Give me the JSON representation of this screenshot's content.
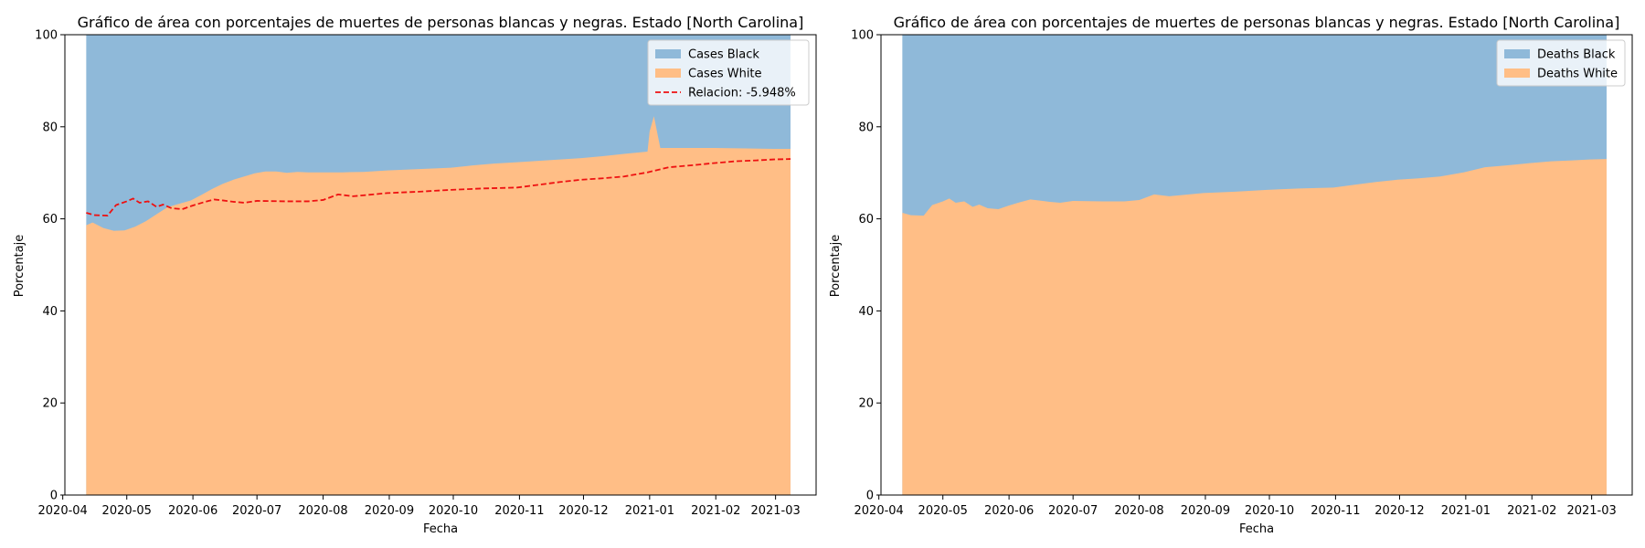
{
  "chart_data": [
    {
      "type": "area",
      "stacked": true,
      "title": "Gráfico de área con porcentajes de muertes de personas blancas y negras. Estado [North Carolina]",
      "xlabel": "Fecha",
      "ylabel": "Porcentaje",
      "ylim": [
        0,
        100
      ],
      "xlim": [
        "2020-04-02",
        "2021-03-20"
      ],
      "x_ticks": [
        "2020-04",
        "2020-05",
        "2020-06",
        "2020-07",
        "2020-08",
        "2020-09",
        "2020-10",
        "2020-11",
        "2020-12",
        "2021-01",
        "2021-02",
        "2021-03"
      ],
      "y_ticks": [
        0,
        20,
        40,
        60,
        80,
        100
      ],
      "legend_position": "top-right",
      "grid": false,
      "series": [
        {
          "name": "Cases White",
          "color": "#ffbe86",
          "points": [
            [
              "2020-04-12",
              58.6
            ],
            [
              "2020-04-15",
              59.2
            ],
            [
              "2020-04-20",
              58.0
            ],
            [
              "2020-04-25",
              57.4
            ],
            [
              "2020-04-30",
              57.5
            ],
            [
              "2020-05-05",
              58.3
            ],
            [
              "2020-05-10",
              59.5
            ],
            [
              "2020-05-15",
              61.0
            ],
            [
              "2020-05-20",
              62.5
            ],
            [
              "2020-05-25",
              63.2
            ],
            [
              "2020-05-31",
              64.0
            ],
            [
              "2020-06-05",
              65.2
            ],
            [
              "2020-06-10",
              66.5
            ],
            [
              "2020-06-15",
              67.6
            ],
            [
              "2020-06-20",
              68.5
            ],
            [
              "2020-06-25",
              69.2
            ],
            [
              "2020-06-30",
              69.9
            ],
            [
              "2020-07-05",
              70.3
            ],
            [
              "2020-07-10",
              70.3
            ],
            [
              "2020-07-15",
              70.0
            ],
            [
              "2020-07-20",
              70.2
            ],
            [
              "2020-07-25",
              70.1
            ],
            [
              "2020-07-31",
              70.1
            ],
            [
              "2020-08-10",
              70.1
            ],
            [
              "2020-08-20",
              70.2
            ],
            [
              "2020-08-31",
              70.5
            ],
            [
              "2020-09-10",
              70.7
            ],
            [
              "2020-09-20",
              70.9
            ],
            [
              "2020-09-30",
              71.1
            ],
            [
              "2020-10-10",
              71.6
            ],
            [
              "2020-10-20",
              72.0
            ],
            [
              "2020-10-31",
              72.3
            ],
            [
              "2020-11-10",
              72.6
            ],
            [
              "2020-11-20",
              72.9
            ],
            [
              "2020-11-30",
              73.2
            ],
            [
              "2020-12-10",
              73.6
            ],
            [
              "2020-12-20",
              74.1
            ],
            [
              "2020-12-31",
              74.6
            ],
            [
              "2021-01-01",
              79.0
            ],
            [
              "2021-01-03",
              82.3
            ],
            [
              "2021-01-06",
              75.4
            ],
            [
              "2021-01-15",
              75.4
            ],
            [
              "2021-01-31",
              75.4
            ],
            [
              "2021-02-15",
              75.3
            ],
            [
              "2021-02-28",
              75.2
            ],
            [
              "2021-03-08",
              75.2
            ]
          ]
        },
        {
          "name": "Cases Black",
          "color": "#8fb9d9",
          "points": [
            [
              "2020-04-12",
              100
            ],
            [
              "2021-03-08",
              100
            ]
          ]
        },
        {
          "name": "Relacion: -5.948%",
          "style": "dashed",
          "color": "#ee1111",
          "points": [
            [
              "2020-04-12",
              61.3
            ],
            [
              "2020-04-16",
              60.8
            ],
            [
              "2020-04-22",
              60.7
            ],
            [
              "2020-04-26",
              63.0
            ],
            [
              "2020-05-01",
              63.8
            ],
            [
              "2020-05-04",
              64.4
            ],
            [
              "2020-05-07",
              63.5
            ],
            [
              "2020-05-11",
              63.8
            ],
            [
              "2020-05-15",
              62.6
            ],
            [
              "2020-05-18",
              63.1
            ],
            [
              "2020-05-22",
              62.3
            ],
            [
              "2020-05-27",
              62.1
            ],
            [
              "2020-06-01",
              62.9
            ],
            [
              "2020-06-06",
              63.6
            ],
            [
              "2020-06-11",
              64.2
            ],
            [
              "2020-06-15",
              64.0
            ],
            [
              "2020-06-20",
              63.7
            ],
            [
              "2020-06-25",
              63.5
            ],
            [
              "2020-07-01",
              63.9
            ],
            [
              "2020-07-15",
              63.8
            ],
            [
              "2020-07-25",
              63.8
            ],
            [
              "2020-08-01",
              64.1
            ],
            [
              "2020-08-08",
              65.3
            ],
            [
              "2020-08-15",
              64.9
            ],
            [
              "2020-08-22",
              65.2
            ],
            [
              "2020-08-31",
              65.6
            ],
            [
              "2020-09-15",
              65.9
            ],
            [
              "2020-09-30",
              66.3
            ],
            [
              "2020-10-15",
              66.6
            ],
            [
              "2020-10-31",
              66.8
            ],
            [
              "2020-11-10",
              67.4
            ],
            [
              "2020-11-20",
              68.0
            ],
            [
              "2020-11-30",
              68.5
            ],
            [
              "2020-12-10",
              68.8
            ],
            [
              "2020-12-20",
              69.2
            ],
            [
              "2020-12-31",
              70.1
            ],
            [
              "2021-01-10",
              71.2
            ],
            [
              "2021-01-20",
              71.6
            ],
            [
              "2021-01-31",
              72.1
            ],
            [
              "2021-02-10",
              72.5
            ],
            [
              "2021-02-20",
              72.7
            ],
            [
              "2021-02-28",
              72.9
            ],
            [
              "2021-03-08",
              73.0
            ]
          ]
        }
      ]
    },
    {
      "type": "area",
      "stacked": true,
      "title": "Gráfico de área con porcentajes de muertes de personas blancas y negras. Estado [North Carolina]",
      "xlabel": "Fecha",
      "ylabel": "Porcentaje",
      "ylim": [
        0,
        100
      ],
      "xlim": [
        "2020-04-02",
        "2021-03-20"
      ],
      "x_ticks": [
        "2020-04",
        "2020-05",
        "2020-06",
        "2020-07",
        "2020-08",
        "2020-09",
        "2020-10",
        "2020-11",
        "2020-12",
        "2021-01",
        "2021-02",
        "2021-03"
      ],
      "y_ticks": [
        0,
        20,
        40,
        60,
        80,
        100
      ],
      "legend_position": "top-right",
      "grid": false,
      "series": [
        {
          "name": "Deaths White",
          "color": "#ffbe86",
          "points": [
            [
              "2020-04-12",
              61.3
            ],
            [
              "2020-04-16",
              60.8
            ],
            [
              "2020-04-22",
              60.7
            ],
            [
              "2020-04-26",
              63.0
            ],
            [
              "2020-05-01",
              63.8
            ],
            [
              "2020-05-04",
              64.4
            ],
            [
              "2020-05-07",
              63.5
            ],
            [
              "2020-05-11",
              63.8
            ],
            [
              "2020-05-15",
              62.6
            ],
            [
              "2020-05-18",
              63.1
            ],
            [
              "2020-05-22",
              62.3
            ],
            [
              "2020-05-27",
              62.1
            ],
            [
              "2020-06-01",
              62.9
            ],
            [
              "2020-06-06",
              63.6
            ],
            [
              "2020-06-11",
              64.2
            ],
            [
              "2020-06-15",
              64.0
            ],
            [
              "2020-06-20",
              63.7
            ],
            [
              "2020-06-25",
              63.5
            ],
            [
              "2020-07-01",
              63.9
            ],
            [
              "2020-07-15",
              63.8
            ],
            [
              "2020-07-25",
              63.8
            ],
            [
              "2020-08-01",
              64.1
            ],
            [
              "2020-08-08",
              65.3
            ],
            [
              "2020-08-15",
              64.9
            ],
            [
              "2020-08-22",
              65.2
            ],
            [
              "2020-08-31",
              65.6
            ],
            [
              "2020-09-15",
              65.9
            ],
            [
              "2020-09-30",
              66.3
            ],
            [
              "2020-10-15",
              66.6
            ],
            [
              "2020-10-31",
              66.8
            ],
            [
              "2020-11-10",
              67.4
            ],
            [
              "2020-11-20",
              68.0
            ],
            [
              "2020-11-30",
              68.5
            ],
            [
              "2020-12-10",
              68.8
            ],
            [
              "2020-12-20",
              69.2
            ],
            [
              "2020-12-31",
              70.1
            ],
            [
              "2021-01-10",
              71.2
            ],
            [
              "2021-01-20",
              71.6
            ],
            [
              "2021-01-31",
              72.1
            ],
            [
              "2021-02-10",
              72.5
            ],
            [
              "2021-02-20",
              72.7
            ],
            [
              "2021-02-28",
              72.9
            ],
            [
              "2021-03-08",
              73.0
            ]
          ]
        },
        {
          "name": "Deaths Black",
          "color": "#8fb9d9",
          "points": [
            [
              "2020-04-12",
              100
            ],
            [
              "2021-03-08",
              100
            ]
          ]
        }
      ]
    }
  ]
}
